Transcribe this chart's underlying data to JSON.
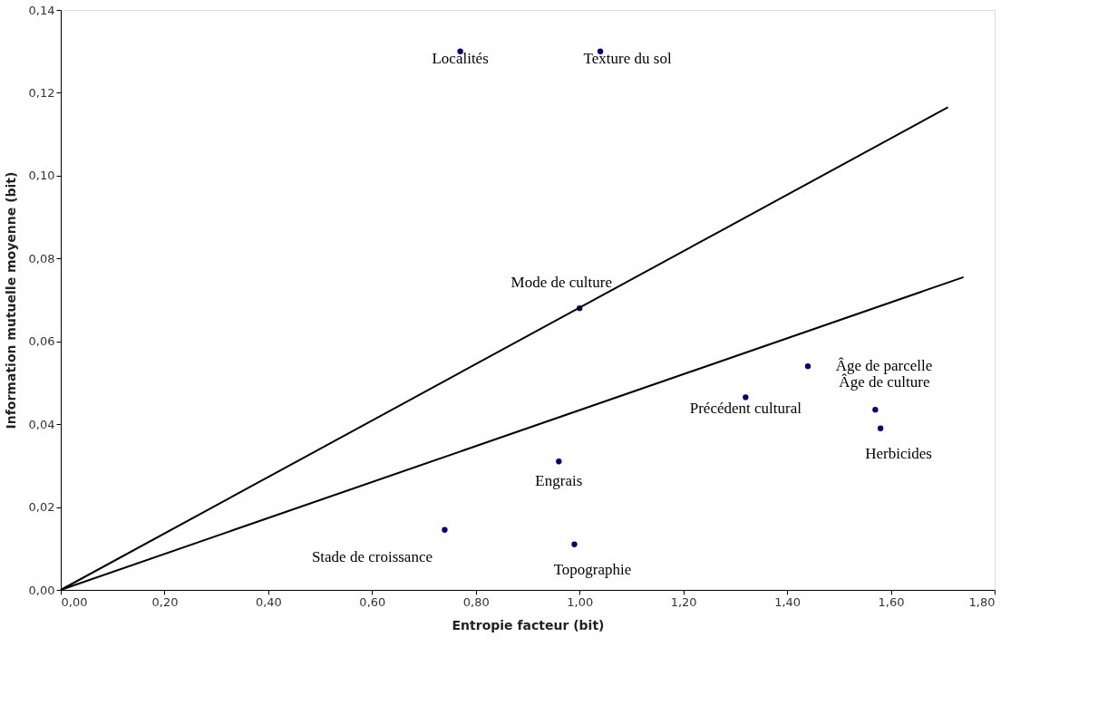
{
  "chart_data": {
    "type": "scatter",
    "xlabel": "Entropie facteur (bit)",
    "ylabel": "Information mutuelle moyenne (bit)",
    "xlim": [
      0,
      1.8
    ],
    "ylim": [
      0,
      0.14
    ],
    "xticks": [
      {
        "value": 0,
        "label": "0,00"
      },
      {
        "value": 0.2,
        "label": "0,20"
      },
      {
        "value": 0.4,
        "label": "0,40"
      },
      {
        "value": 0.6,
        "label": "0,60"
      },
      {
        "value": 0.8,
        "label": "0,80"
      },
      {
        "value": 1.0,
        "label": "1,00"
      },
      {
        "value": 1.2,
        "label": "1,20"
      },
      {
        "value": 1.4,
        "label": "1,40"
      },
      {
        "value": 1.6,
        "label": "1,60"
      },
      {
        "value": 1.8,
        "label": "1,80"
      }
    ],
    "yticks": [
      {
        "value": 0,
        "label": "0,00"
      },
      {
        "value": 0.02,
        "label": "0,02"
      },
      {
        "value": 0.04,
        "label": "0,04"
      },
      {
        "value": 0.06,
        "label": "0,06"
      },
      {
        "value": 0.08,
        "label": "0,08"
      },
      {
        "value": 0.1,
        "label": "0,10"
      },
      {
        "value": 0.12,
        "label": "0,12"
      },
      {
        "value": 0.14,
        "label": "0,14"
      }
    ],
    "grid": false,
    "series": [
      {
        "marker": "circle",
        "color": "#000080",
        "x": [
          0.77,
          1.04,
          1.0,
          1.44,
          1.32,
          1.57,
          1.58,
          0.96,
          0.74,
          0.99
        ],
        "values": [
          0.13,
          0.13,
          0.068,
          0.054,
          0.0465,
          0.0435,
          0.039,
          0.031,
          0.0145,
          0.011
        ]
      },
      {
        "type": "line",
        "color": "#000000",
        "x": [
          0,
          1.71
        ],
        "values": [
          0,
          0.1165
        ]
      },
      {
        "type": "line",
        "color": "#000000",
        "x": [
          0,
          1.74
        ],
        "values": [
          0,
          0.0755
        ]
      }
    ],
    "annotations": [
      {
        "text": "Localités",
        "x": 0.77,
        "y": 0.13
      },
      {
        "text": "Texture du sol",
        "x": 1.04,
        "y": 0.13
      },
      {
        "text": "Mode de culture",
        "x": 1.0,
        "y": 0.068
      },
      {
        "text": "Âge de parcelle",
        "x": 1.44,
        "y": 0.054
      },
      {
        "text": "Précédent cultural",
        "x": 1.32,
        "y": 0.0465
      },
      {
        "text": "Âge de culture",
        "x": 1.57,
        "y": 0.0435
      },
      {
        "text": "Herbicides",
        "x": 1.58,
        "y": 0.039
      },
      {
        "text": "Engrais",
        "x": 0.96,
        "y": 0.031
      },
      {
        "text": "Stade de croissance",
        "x": 0.74,
        "y": 0.0145
      },
      {
        "text": "Topographie",
        "x": 0.99,
        "y": 0.011
      }
    ]
  }
}
